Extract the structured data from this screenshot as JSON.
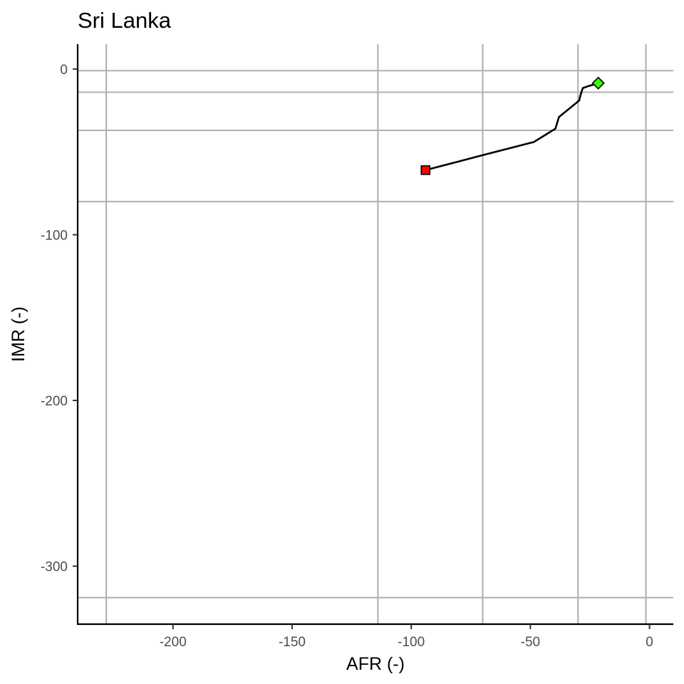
{
  "chart_data": {
    "type": "line",
    "title": "Sri Lanka",
    "xlabel": "AFR (-)",
    "ylabel": "IMR (-)",
    "xlim": [
      -240,
      10
    ],
    "ylim": [
      -335,
      15
    ],
    "x_ticks": [
      -200,
      -150,
      -100,
      -50,
      0
    ],
    "y_ticks": [
      0,
      -100,
      -200,
      -300
    ],
    "grid": true,
    "vertical_reference_lines": [
      -228,
      -114,
      -70,
      -30,
      -1.5
    ],
    "horizontal_reference_lines": [
      -1,
      -14,
      -37,
      -80,
      -319
    ],
    "series": [
      {
        "x": [
          -94,
          -70,
          -48.5,
          -39.5,
          -38,
          -29.5,
          -29,
          -28,
          -26,
          -21.5
        ],
        "y": [
          -61,
          -52,
          -44,
          -36,
          -29,
          -19,
          -16,
          -11.5,
          -10.5,
          -8.5
        ]
      }
    ],
    "start_marker": {
      "shape": "square",
      "color": "#ff0000",
      "x": -94,
      "y": -61
    },
    "end_marker": {
      "shape": "diamond",
      "color": "#33ff00",
      "x": -21.5,
      "y": -8.5
    }
  }
}
